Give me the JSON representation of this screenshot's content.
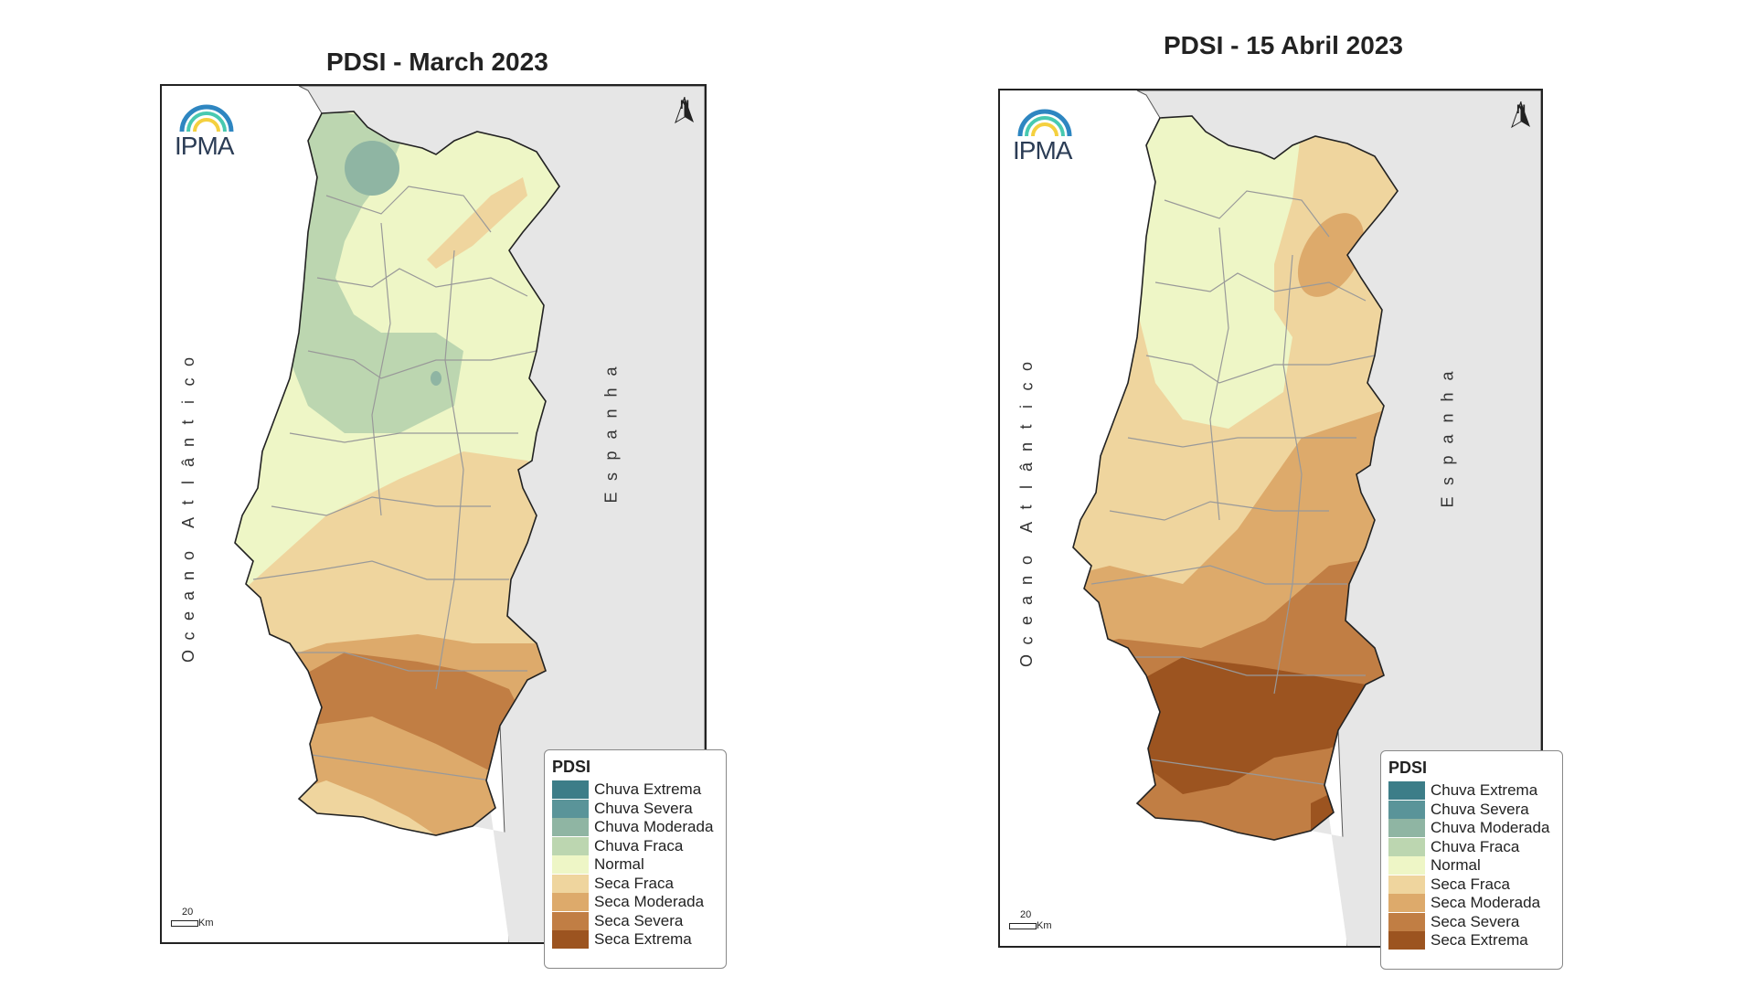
{
  "maps": [
    {
      "title": "PDSI - March 2023",
      "logo": "IPMA",
      "ocean_label": "Oceano Atlântico",
      "spain_label": "Espanha",
      "north_label": "N",
      "scale_value": "20",
      "scale_unit": "Km",
      "legend_title": "PDSI"
    },
    {
      "title": "PDSI - 15 Abril 2023",
      "logo": "IPMA",
      "ocean_label": "Oceano Atlântico",
      "spain_label": "Espanha",
      "north_label": "N",
      "scale_value": "20",
      "scale_unit": "Km",
      "legend_title": "PDSI"
    }
  ],
  "legend_classes": [
    {
      "label": "Chuva Extrema",
      "color": "#3c7d88"
    },
    {
      "label": "Chuva Severa",
      "color": "#5a9499"
    },
    {
      "label": "Chuva Moderada",
      "color": "#8fb5a3"
    },
    {
      "label": "Chuva Fraca",
      "color": "#bcd6b0"
    },
    {
      "label": "Normal",
      "color": "#eef6c6"
    },
    {
      "label": "Seca Fraca",
      "color": "#efd59e"
    },
    {
      "label": "Seca Moderada",
      "color": "#ddaa6b"
    },
    {
      "label": "Seca Severa",
      "color": "#c17e44"
    },
    {
      "label": "Seca Extrema",
      "color": "#9c5420"
    }
  ],
  "colors": {
    "spain": "#e6e6e6",
    "border": "#222222",
    "district_lines": "#999999",
    "logo_arc_blue": "#2e86c1",
    "logo_arc_teal": "#48c9b0",
    "logo_arc_yellow": "#f4d03f"
  }
}
